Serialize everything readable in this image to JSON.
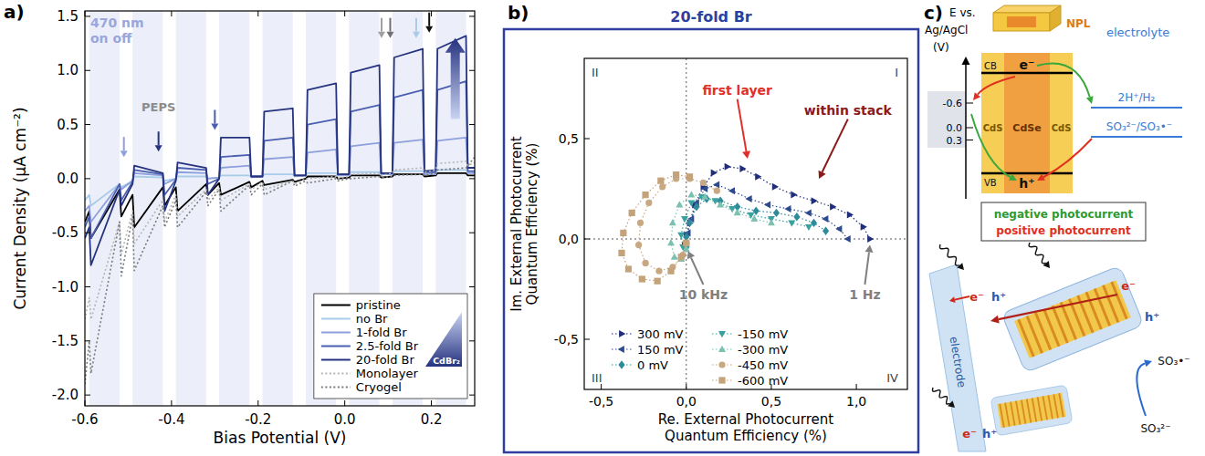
{
  "chart_data": [
    {
      "panel": "a)",
      "type": "line",
      "x_label": "Bias Potential (V)",
      "y_label": "Current Density (µA cm⁻²)",
      "xlim": [
        -0.6,
        0.3
      ],
      "ylim": [
        -2.1,
        1.55
      ],
      "xticks": [
        -0.6,
        -0.4,
        -0.2,
        {
          "value": 0,
          "label": "0.0"
        },
        0.2
      ],
      "yticks": [
        {
          "value": -2,
          "label": "-2.0"
        },
        -1.5,
        {
          "value": -1,
          "label": "-1.0"
        },
        -0.5,
        {
          "value": 0,
          "label": "0.0"
        },
        0.5,
        {
          "value": 1,
          "label": "1.0"
        },
        1.5
      ],
      "x": [
        -0.6,
        -0.59,
        -0.586,
        -0.52,
        -0.516,
        -0.49,
        -0.486,
        -0.42,
        -0.416,
        -0.39,
        -0.386,
        -0.32,
        -0.316,
        -0.29,
        -0.286,
        -0.22,
        -0.216,
        -0.19,
        -0.186,
        -0.12,
        -0.116,
        -0.09,
        -0.086,
        -0.02,
        -0.016,
        0.01,
        0.014,
        0.08,
        0.084,
        0.11,
        0.114,
        0.18,
        0.184,
        0.21,
        0.214,
        0.28,
        0.284,
        0.3
      ],
      "series": [
        {
          "name": "pristine",
          "color": "#000000",
          "line_style": "solid",
          "values": [
            -0.4,
            -0.3,
            -0.55,
            -0.1,
            -0.35,
            -0.15,
            -0.45,
            -0.08,
            -0.25,
            -0.08,
            -0.3,
            -0.05,
            -0.15,
            -0.04,
            -0.15,
            -0.03,
            -0.08,
            -0.02,
            -0.06,
            -0.01,
            -0.03,
            0.0,
            0.02,
            0.02,
            0.0,
            0.01,
            0.03,
            0.03,
            0.01,
            0.02,
            0.04,
            0.04,
            0.02,
            0.03,
            0.05,
            0.05,
            0.03,
            0.03
          ]
        },
        {
          "name": "no Br",
          "color": "#a9cbea",
          "line_style": "solid",
          "values": [
            -0.2,
            -0.15,
            -0.25,
            -0.05,
            -0.08,
            -0.02,
            0.02,
            0.01,
            -0.02,
            0.0,
            0.02,
            0.02,
            0.0,
            0.01,
            0.03,
            0.03,
            0.01,
            0.02,
            0.04,
            0.04,
            0.02,
            0.03,
            0.05,
            0.05,
            0.03,
            0.04,
            0.06,
            0.06,
            0.04,
            0.05,
            0.07,
            0.07,
            0.05,
            0.06,
            0.08,
            0.08,
            0.06,
            0.06
          ]
        },
        {
          "name": "1-fold Br",
          "color": "#8ea0dc",
          "line_style": "solid",
          "values": [
            -0.3,
            -0.25,
            -0.4,
            -0.05,
            -0.1,
            -0.02,
            0.05,
            0.03,
            -0.05,
            0.0,
            0.06,
            0.05,
            0.0,
            0.01,
            0.1,
            0.12,
            0.02,
            0.02,
            0.18,
            0.2,
            0.03,
            0.03,
            0.24,
            0.27,
            0.03,
            0.03,
            0.3,
            0.33,
            0.04,
            0.04,
            0.33,
            0.36,
            0.04,
            0.04,
            0.35,
            0.38,
            0.05,
            0.05
          ]
        },
        {
          "name": "2.5-fold Br",
          "color": "#4b5fb0",
          "line_style": "solid",
          "values": [
            -0.45,
            -0.35,
            -0.55,
            -0.05,
            -0.2,
            -0.03,
            0.08,
            0.04,
            -0.15,
            -0.01,
            0.1,
            0.08,
            -0.05,
            0.0,
            0.2,
            0.22,
            0.02,
            0.02,
            0.35,
            0.38,
            0.03,
            0.03,
            0.5,
            0.55,
            0.04,
            0.04,
            0.62,
            0.68,
            0.05,
            0.05,
            0.75,
            0.82,
            0.06,
            0.06,
            0.82,
            0.9,
            0.07,
            0.07
          ]
        },
        {
          "name": "20-fold Br",
          "color": "#26337f",
          "line_style": "solid",
          "values": [
            -0.55,
            -0.45,
            -0.8,
            -0.1,
            -0.25,
            -0.05,
            0.12,
            0.05,
            -0.3,
            -0.02,
            0.15,
            0.1,
            -0.15,
            0.0,
            0.38,
            0.38,
            0.02,
            0.02,
            0.62,
            0.65,
            0.03,
            0.03,
            0.82,
            0.88,
            0.04,
            0.04,
            0.98,
            1.05,
            0.05,
            0.05,
            1.12,
            1.2,
            0.07,
            0.08,
            1.2,
            1.32,
            0.1,
            0.1
          ]
        },
        {
          "name": "Monolayer",
          "color": "#b5b5b5",
          "line_style": "dotted",
          "values": [
            -1.3,
            -1.1,
            -1.3,
            -0.4,
            -0.7,
            -0.3,
            -0.6,
            -0.2,
            -0.4,
            -0.15,
            -0.35,
            -0.1,
            -0.2,
            -0.08,
            -0.2,
            -0.05,
            -0.1,
            -0.03,
            -0.1,
            -0.02,
            -0.05,
            0.0,
            0.0,
            0.02,
            0.0,
            0.02,
            0.04,
            0.05,
            0.03,
            0.05,
            0.08,
            0.1,
            0.06,
            0.08,
            0.14,
            0.16,
            0.12,
            0.15
          ]
        },
        {
          "name": "Cryogel",
          "color": "#7a7a7a",
          "line_style": "dotted",
          "values": [
            -1.9,
            -1.5,
            -1.8,
            -0.4,
            -0.9,
            -0.35,
            -0.85,
            -0.25,
            -0.45,
            -0.2,
            -0.45,
            -0.12,
            -0.25,
            -0.1,
            -0.3,
            -0.06,
            -0.15,
            -0.05,
            -0.15,
            -0.02,
            -0.07,
            -0.02,
            -0.04,
            0.0,
            -0.02,
            0.0,
            0.0,
            0.02,
            0.01,
            0.02,
            0.03,
            0.04,
            0.03,
            0.05,
            0.08,
            0.1,
            0.12,
            0.2
          ]
        }
      ],
      "legend": "lower right",
      "legend_gradient_label": "CdBr₂",
      "light_label": "470 nm",
      "light_states": "on off",
      "light_on": [
        [
          -0.59,
          -0.52
        ],
        [
          -0.49,
          -0.42
        ],
        [
          -0.39,
          -0.32
        ],
        [
          -0.29,
          -0.22
        ],
        [
          -0.19,
          -0.12
        ],
        [
          -0.09,
          -0.02
        ],
        [
          0.01,
          0.08
        ],
        [
          0.11,
          0.18
        ],
        [
          0.21,
          0.28
        ]
      ],
      "annotations": [
        {
          "text": "PEPS",
          "x": -0.43,
          "y": 0.62,
          "color": "#8c8c8c"
        }
      ],
      "arrows": [
        {
          "x": -0.51,
          "y": 0.2,
          "color": "#8ea0dc"
        },
        {
          "x": -0.43,
          "y": 0.25,
          "color": "#26337f"
        },
        {
          "x": -0.3,
          "y": 0.45,
          "color": "#4b5fb0"
        },
        {
          "x": 0.085,
          "y": 1.3,
          "color": "#a0a0a0"
        },
        {
          "x": 0.105,
          "y": 1.3,
          "color": "#707070"
        },
        {
          "x": 0.165,
          "y": 1.3,
          "color": "#a9cbea"
        },
        {
          "x": 0.195,
          "y": 1.35,
          "color": "#111111"
        }
      ],
      "trend_arrow": {
        "x": 0.255,
        "from": 0.55,
        "to": 1.3
      }
    },
    {
      "panel": "b)",
      "type": "scatter",
      "title": "20-fold Br",
      "x_label": "Re. External Photocurrent Quantum Efficiency (%)",
      "y_label": "Im. External Photocurrent Quantum Efficiency (%)",
      "xlim": [
        -0.6,
        1.3
      ],
      "ylim": [
        -0.75,
        0.9
      ],
      "xticks": [
        {
          "value": -0.5,
          "label": "-0,5"
        },
        {
          "value": 0,
          "label": "0,0"
        },
        {
          "value": 0.5,
          "label": "0,5"
        },
        {
          "value": 1,
          "label": "1,0"
        }
      ],
      "yticks": [
        {
          "value": -0.5,
          "label": "-0,5"
        },
        {
          "value": 0,
          "label": "0,0"
        },
        {
          "value": 0.5,
          "label": "0,5"
        }
      ],
      "origin": [
        0,
        0
      ],
      "line_style": "dotted",
      "quadrants": [
        "I",
        "II",
        "III",
        "IV"
      ],
      "legend": "lower left",
      "series": [
        {
          "name": "300 mV",
          "color": "#1f2d7a",
          "marker": "triangle-right",
          "x": [
            1.08,
            1.04,
            0.96,
            0.86,
            0.75,
            0.63,
            0.52,
            0.42,
            0.33,
            0.24,
            0.16,
            0.1,
            0.05,
            0.02,
            0.0,
            -0.01
          ],
          "values": [
            0.0,
            0.06,
            0.12,
            0.16,
            0.19,
            0.22,
            0.26,
            0.31,
            0.35,
            0.36,
            0.33,
            0.26,
            0.17,
            0.08,
            0.02,
            -0.03
          ]
        },
        {
          "name": "150 mV",
          "color": "#2d4a8f",
          "marker": "triangle-left",
          "x": [
            0.95,
            0.9,
            0.82,
            0.72,
            0.6,
            0.48,
            0.37,
            0.27,
            0.18,
            0.11,
            0.06,
            0.03,
            0.01,
            0.0
          ],
          "values": [
            0.0,
            0.05,
            0.1,
            0.13,
            0.15,
            0.17,
            0.2,
            0.24,
            0.27,
            0.25,
            0.18,
            0.1,
            0.03,
            -0.03
          ]
        },
        {
          "name": "0 mV",
          "color": "#2f8a9a",
          "marker": "diamond",
          "x": [
            0.82,
            0.75,
            0.65,
            0.53,
            0.41,
            0.3,
            0.2,
            0.12,
            0.06,
            0.02,
            0.0,
            -0.01
          ],
          "values": [
            0.04,
            0.08,
            0.11,
            0.13,
            0.14,
            0.16,
            0.19,
            0.2,
            0.16,
            0.08,
            0.01,
            -0.04
          ]
        },
        {
          "name": "-150 mV",
          "color": "#3aa0a0",
          "marker": "triangle-down",
          "x": [
            0.72,
            0.62,
            0.5,
            0.38,
            0.27,
            0.17,
            0.09,
            0.03,
            -0.01,
            -0.03,
            -0.02,
            0.0
          ],
          "values": [
            0.06,
            0.08,
            0.1,
            0.12,
            0.15,
            0.19,
            0.21,
            0.18,
            0.1,
            0.02,
            -0.04,
            -0.05
          ]
        },
        {
          "name": "-300 mV",
          "color": "#7cc0b0",
          "marker": "triangle-up",
          "x": [
            0.5,
            0.4,
            0.3,
            0.2,
            0.11,
            0.03,
            -0.04,
            -0.08,
            -0.09,
            -0.07,
            -0.03,
            0.0
          ],
          "values": [
            0.08,
            0.1,
            0.13,
            0.17,
            0.21,
            0.22,
            0.17,
            0.08,
            -0.02,
            -0.09,
            -0.1,
            -0.05
          ]
        },
        {
          "name": "-450 mV",
          "color": "#c8a882",
          "marker": "circle",
          "x": [
            0.18,
            0.1,
            0.02,
            -0.06,
            -0.14,
            -0.22,
            -0.27,
            -0.28,
            -0.24,
            -0.16,
            -0.08,
            -0.02,
            0.0
          ],
          "values": [
            0.24,
            0.28,
            0.3,
            0.3,
            0.26,
            0.18,
            0.08,
            -0.03,
            -0.12,
            -0.16,
            -0.14,
            -0.08,
            -0.02
          ]
        },
        {
          "name": "-600 mV",
          "color": "#c4a27a",
          "marker": "square",
          "x": [
            0.02,
            -0.06,
            -0.15,
            -0.24,
            -0.32,
            -0.37,
            -0.38,
            -0.34,
            -0.26,
            -0.17,
            -0.09,
            -0.03,
            0.0
          ],
          "values": [
            0.31,
            0.32,
            0.29,
            0.22,
            0.13,
            0.03,
            -0.07,
            -0.15,
            -0.2,
            -0.21,
            -0.16,
            -0.09,
            -0.02
          ]
        }
      ],
      "annotations": [
        {
          "text": "first layer",
          "x": 0.3,
          "y": 0.72,
          "arrow_x": 0.36,
          "arrow_y": 0.4,
          "color": "#e0302a"
        },
        {
          "text": "within stack",
          "x": 0.95,
          "y": 0.62,
          "arrow_x": 0.78,
          "arrow_y": 0.3,
          "color": "#8b1a1a"
        },
        {
          "text": "10 kHz",
          "x": 0.1,
          "y": -0.3,
          "arrow_x": 0.01,
          "arrow_y": -0.06,
          "color": "#808080"
        },
        {
          "text": "1 Hz",
          "x": 1.05,
          "y": -0.3,
          "arrow_x": 1.08,
          "arrow_y": -0.03,
          "color": "#808080"
        }
      ]
    }
  ],
  "diagram": {
    "panel": "c)",
    "axis_title": [
      "E vs.",
      "Ag/AgCl",
      "(V)"
    ],
    "energy_ticks": [
      {
        "value": -0.6,
        "label": "-0.6"
      },
      {
        "value": 0,
        "label": "0.0"
      },
      {
        "value": 0.3,
        "label": "0.3"
      }
    ],
    "npl_label": "NPL",
    "electrolyte_label": "electrolyte",
    "electron": "e⁻",
    "hole": "h⁺",
    "cb": "CB",
    "vb": "VB",
    "shell": "CdS",
    "core": "CdSe",
    "redox_couples": [
      "2H⁺/H₂",
      "SO₃²⁻/SO₃•⁻"
    ],
    "photocurrent_labels": [
      "negative photocurrent",
      "positive photocurrent"
    ],
    "electrode_label": "electrode",
    "sulfite": "SO₃²⁻",
    "sulfite_radical": "SO₃•⁻"
  }
}
